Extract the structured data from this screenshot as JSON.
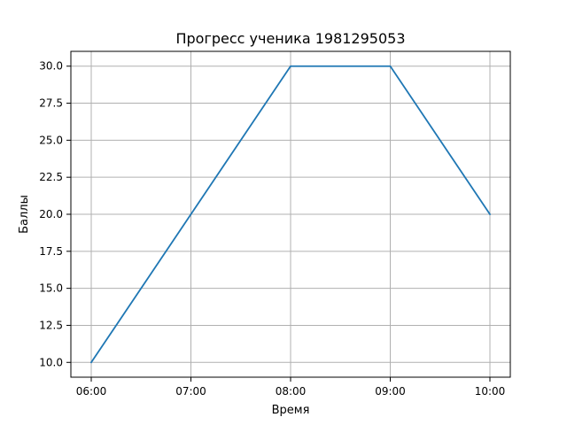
{
  "chart_data": {
    "type": "line",
    "title": "Прогресс ученика 1981295053",
    "xlabel": "Время",
    "ylabel": "Баллы",
    "x": [
      "06:00",
      "07:00",
      "08:00",
      "09:00",
      "10:00"
    ],
    "series": [
      {
        "values": [
          10.0,
          20.0,
          30.0,
          30.0,
          20.0
        ]
      }
    ],
    "x_ticks": [
      "06:00",
      "07:00",
      "08:00",
      "09:00",
      "10:00"
    ],
    "y_ticks": [
      "10.0",
      "12.5",
      "15.0",
      "17.5",
      "20.0",
      "22.5",
      "25.0",
      "27.5",
      "30.0"
    ],
    "ylim": [
      9.0,
      31.0
    ],
    "grid": true,
    "line_color": "#1f77b4",
    "grid_color": "#b0b0b0"
  }
}
